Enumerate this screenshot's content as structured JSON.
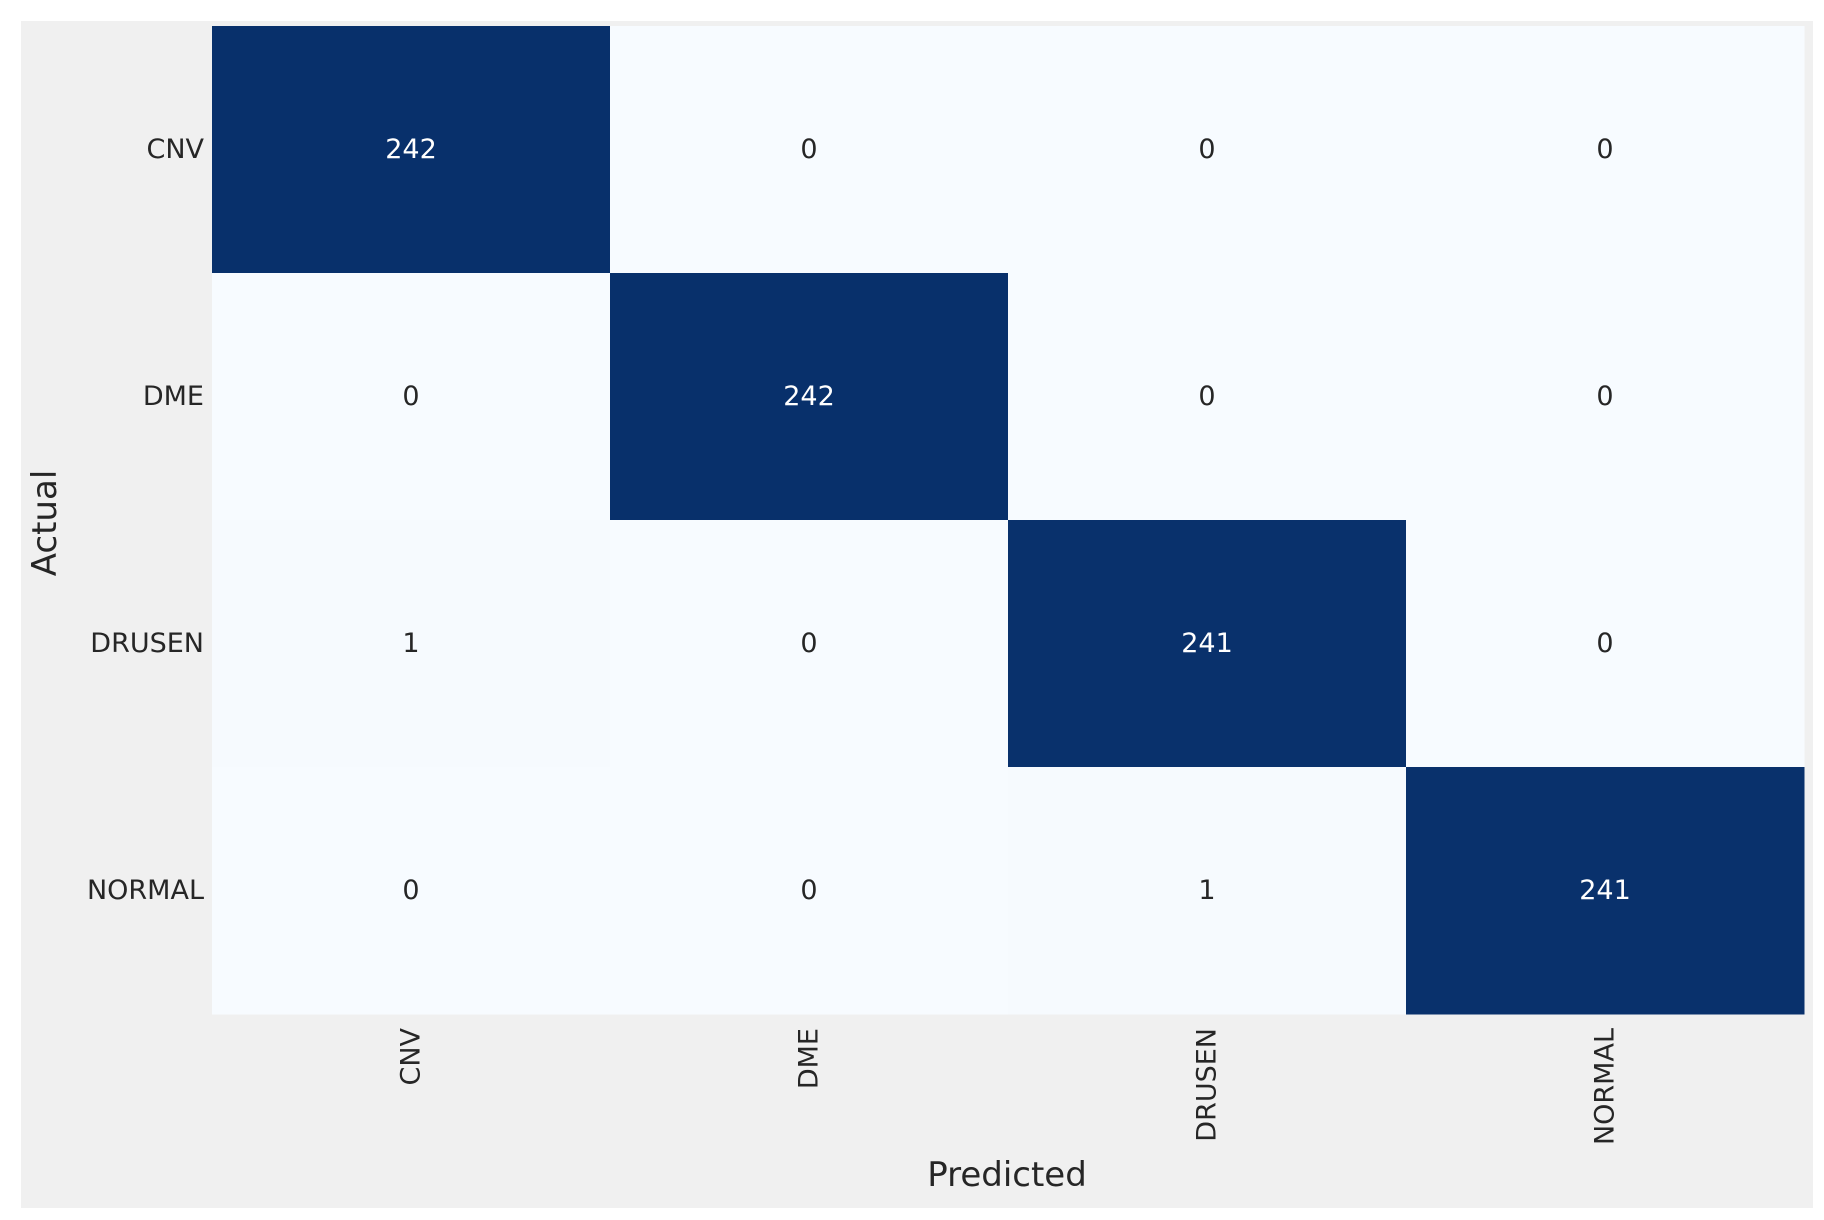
{
  "chart_data": {
    "type": "heatmap",
    "title": "",
    "xlabel": "Predicted",
    "ylabel": "Actual",
    "x_categories": [
      "CNV",
      "DME",
      "DRUSEN",
      "NORMAL"
    ],
    "y_categories": [
      "CNV",
      "DME",
      "DRUSEN",
      "NORMAL"
    ],
    "values": [
      [
        242,
        0,
        0,
        0
      ],
      [
        0,
        242,
        0,
        0
      ],
      [
        1,
        0,
        241,
        0
      ],
      [
        0,
        0,
        1,
        241
      ]
    ],
    "colormap": "Blues",
    "color_low": "#f7fbff",
    "color_high": "#08306b",
    "text_color_dark": "#262626",
    "text_color_light": "#ffffff",
    "background_color": "#f0f0f0",
    "colorbar": false,
    "grid": false
  }
}
